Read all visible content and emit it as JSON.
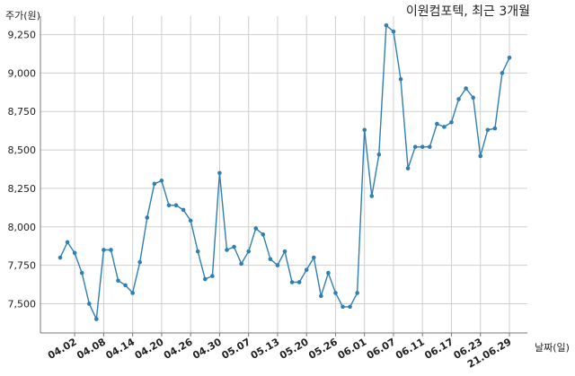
{
  "chart_data": {
    "type": "line",
    "title": "이원컴포텍, 최근 3개월",
    "ylabel": "주가(원)",
    "xlabel": "날짜(일)",
    "ylim": [
      7310,
      9370
    ],
    "grid": true,
    "line_color": "#2f7fb3",
    "y_ticks": [
      7500,
      7750,
      8000,
      8250,
      8500,
      8750,
      9000,
      9250
    ],
    "y_tick_labels": [
      "7,500",
      "7,750",
      "8,000",
      "8,250",
      "8,500",
      "8,750",
      "9,000",
      "9,250"
    ],
    "x_ticks": [
      {
        "index": 2,
        "label": "04.02"
      },
      {
        "index": 6,
        "label": "04.08"
      },
      {
        "index": 10,
        "label": "04.14"
      },
      {
        "index": 14,
        "label": "04.20"
      },
      {
        "index": 18,
        "label": "04.26"
      },
      {
        "index": 22,
        "label": "04.30"
      },
      {
        "index": 26,
        "label": "05.07"
      },
      {
        "index": 30,
        "label": "05.13"
      },
      {
        "index": 34,
        "label": "05.20"
      },
      {
        "index": 38,
        "label": "05.26"
      },
      {
        "index": 42,
        "label": "06.01"
      },
      {
        "index": 46,
        "label": "06.07"
      },
      {
        "index": 50,
        "label": "06.11"
      },
      {
        "index": 54,
        "label": "06.17"
      },
      {
        "index": 58,
        "label": "06.23"
      },
      {
        "index": 62,
        "label": "21.06.29"
      }
    ],
    "values": [
      7800,
      7900,
      7830,
      7700,
      7500,
      7400,
      7850,
      7850,
      7650,
      7620,
      7570,
      7770,
      8060,
      8280,
      8300,
      8140,
      8140,
      8110,
      8040,
      7840,
      7660,
      7680,
      8350,
      7850,
      7870,
      7760,
      7840,
      7990,
      7950,
      7790,
      7750,
      7840,
      7640,
      7640,
      7720,
      7800,
      7550,
      7700,
      7570,
      7480,
      7480,
      7570,
      8630,
      8200,
      8470,
      9310,
      9270,
      8960,
      8380,
      8520,
      8520,
      8520,
      8670,
      8650,
      8680,
      8830,
      8900,
      8840,
      8460,
      8630,
      8640,
      9000,
      9100
    ]
  }
}
